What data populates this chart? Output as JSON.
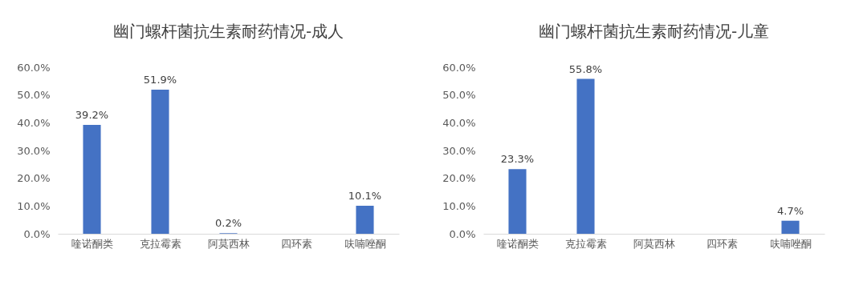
{
  "chart_data": [
    {
      "type": "bar",
      "title": "幽门螺杆菌抗生素耐药情况-成人",
      "categories": [
        "喹诺酮类",
        "克拉霉素",
        "阿莫西林",
        "四环素",
        "呋喃唑酮"
      ],
      "values": [
        39.2,
        51.9,
        0.2,
        null,
        10.1
      ],
      "value_labels": [
        "39.2%",
        "51.9%",
        "0.2%",
        null,
        "10.1%"
      ],
      "color": "#4472c4",
      "ylim": [
        0,
        60
      ],
      "yticks": [
        {
          "value": 0,
          "label": "0.0%"
        },
        {
          "value": 10,
          "label": "10.0%"
        },
        {
          "value": 20,
          "label": "20.0%"
        },
        {
          "value": 30,
          "label": "30.0%"
        },
        {
          "value": 40,
          "label": "40.0%"
        },
        {
          "value": 50,
          "label": "50.0%"
        },
        {
          "value": 60,
          "label": "60.0%"
        }
      ],
      "grid": false
    },
    {
      "type": "bar",
      "title": "幽门螺杆菌抗生素耐药情况-儿童",
      "categories": [
        "喹诺酮类",
        "克拉霉素",
        "阿莫西林",
        "四环素",
        "呋喃唑酮"
      ],
      "values": [
        23.3,
        55.8,
        null,
        null,
        4.7
      ],
      "value_labels": [
        "23.3%",
        "55.8%",
        null,
        null,
        "4.7%"
      ],
      "color": "#4472c4",
      "ylim": [
        0,
        60
      ],
      "yticks": [
        {
          "value": 0,
          "label": "0.0%"
        },
        {
          "value": 10,
          "label": "10.0%"
        },
        {
          "value": 20,
          "label": "20.0%"
        },
        {
          "value": 30,
          "label": "30.0%"
        },
        {
          "value": 40,
          "label": "40.0%"
        },
        {
          "value": 50,
          "label": "50.0%"
        },
        {
          "value": 60,
          "label": "60.0%"
        }
      ],
      "grid": false
    }
  ]
}
